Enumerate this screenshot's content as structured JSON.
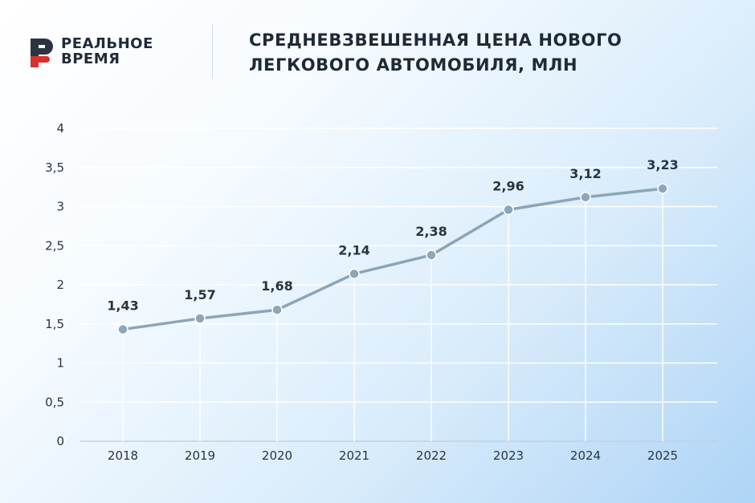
{
  "brand": {
    "line1": "РЕАЛЬНОЕ",
    "line2": "ВРЕМЯ",
    "mark_color": "#d7302f",
    "mark_dark": "#2b3542"
  },
  "header": {
    "title_line1": "СРЕДНЕВЗВЕШЕННАЯ ЦЕНА НОВОГО",
    "title_line2": "ЛЕГКОВОГО АВТОМОБИЛЯ, МЛН"
  },
  "chart_data": {
    "type": "line",
    "title": "СРЕДНЕВЗВЕШЕННАЯ ЦЕНА НОВОГО ЛЕГКОВОГО АВТОМОБИЛЯ, МЛН",
    "categories": [
      "2018",
      "2019",
      "2020",
      "2021",
      "2022",
      "2023",
      "2024",
      "2025"
    ],
    "values": [
      1.43,
      1.57,
      1.68,
      2.14,
      2.38,
      2.96,
      3.12,
      3.23
    ],
    "value_labels": [
      "1,43",
      "1,57",
      "1,68",
      "2,14",
      "2,38",
      "2,96",
      "3,12",
      "3,23"
    ],
    "ylim": [
      0,
      4
    ],
    "yticks": [
      0,
      0.5,
      1,
      1.5,
      2,
      2.5,
      3,
      3.5,
      4
    ],
    "ytick_labels": [
      "0",
      "0,5",
      "1",
      "1,5",
      "2",
      "2,5",
      "3",
      "3,5",
      "4"
    ],
    "grid": true,
    "line_color": "#8ba5b8",
    "marker_color": "#8fa6b8"
  }
}
